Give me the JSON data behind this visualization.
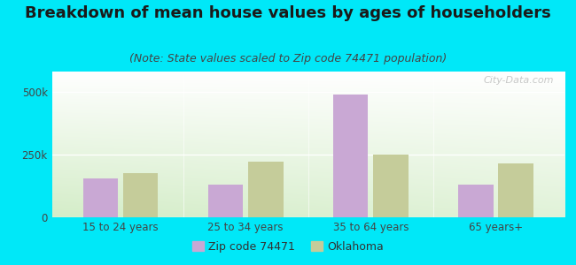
{
  "title": "Breakdown of mean house values by ages of householders",
  "subtitle": "(Note: State values scaled to Zip code 74471 population)",
  "categories": [
    "15 to 24 years",
    "25 to 34 years",
    "35 to 64 years",
    "65 years+"
  ],
  "zip_values": [
    155000,
    130000,
    490000,
    130000
  ],
  "state_values": [
    175000,
    220000,
    250000,
    215000
  ],
  "zip_color": "#c9a8d4",
  "state_color": "#c5cc9a",
  "background_outer": "#00e8f8",
  "yticks": [
    0,
    250000,
    500000
  ],
  "ytick_labels": [
    "0",
    "250k",
    "500k"
  ],
  "ylim": [
    0,
    580000
  ],
  "legend_zip_label": "Zip code 74471",
  "legend_state_label": "Oklahoma",
  "title_fontsize": 13,
  "subtitle_fontsize": 9,
  "tick_fontsize": 8.5,
  "legend_fontsize": 9
}
